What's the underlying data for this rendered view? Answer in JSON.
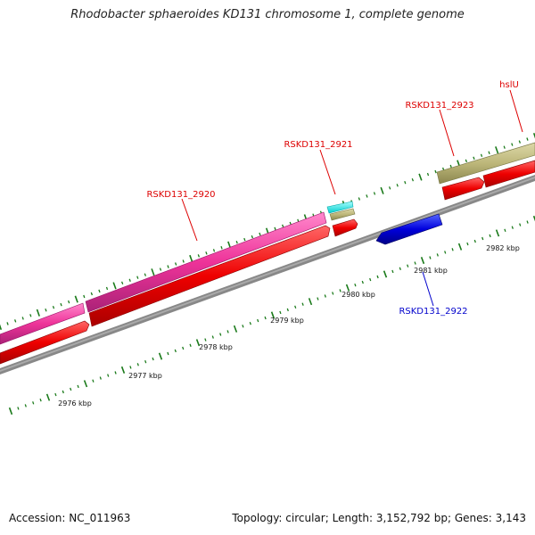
{
  "title": "Rhodobacter sphaeroides KD131 chromosome 1, complete genome",
  "footer": {
    "accession_label": "Accession:",
    "accession": "NC_011963",
    "topology_label": "Topology:",
    "topology": "circular",
    "length_label": "Length:",
    "length": "3,152,792 bp",
    "genes_label": "Genes:",
    "genes": "3,143"
  },
  "scale_labels": [
    "2976 kbp",
    "2977 kbp",
    "2978 kbp",
    "2979 kbp",
    "2980 kbp",
    "2981 kbp",
    "2982 kbp"
  ],
  "genes": [
    {
      "name": "RSKD131_2920",
      "strand": "+",
      "color": "#ff0000"
    },
    {
      "name": "RSKD131_2921",
      "strand": "+",
      "color": "#ff0000"
    },
    {
      "name": "RSKD131_2922",
      "strand": "-",
      "color": "#0000cc"
    },
    {
      "name": "RSKD131_2923",
      "strand": "+",
      "color": "#ff0000"
    },
    {
      "name": "hslU",
      "strand": "+",
      "color": "#ff0000"
    }
  ],
  "colors": {
    "backbone": "#888888",
    "tick": "#1a7a1a",
    "cds_forward": "#ee0000",
    "cds_reverse": "#0000dd",
    "feature_magenta": "#ee3399",
    "feature_olive": "#bdb77a",
    "feature_cyan": "#00eeee",
    "label_forward": "#dd0000",
    "label_reverse": "#0000cc"
  }
}
